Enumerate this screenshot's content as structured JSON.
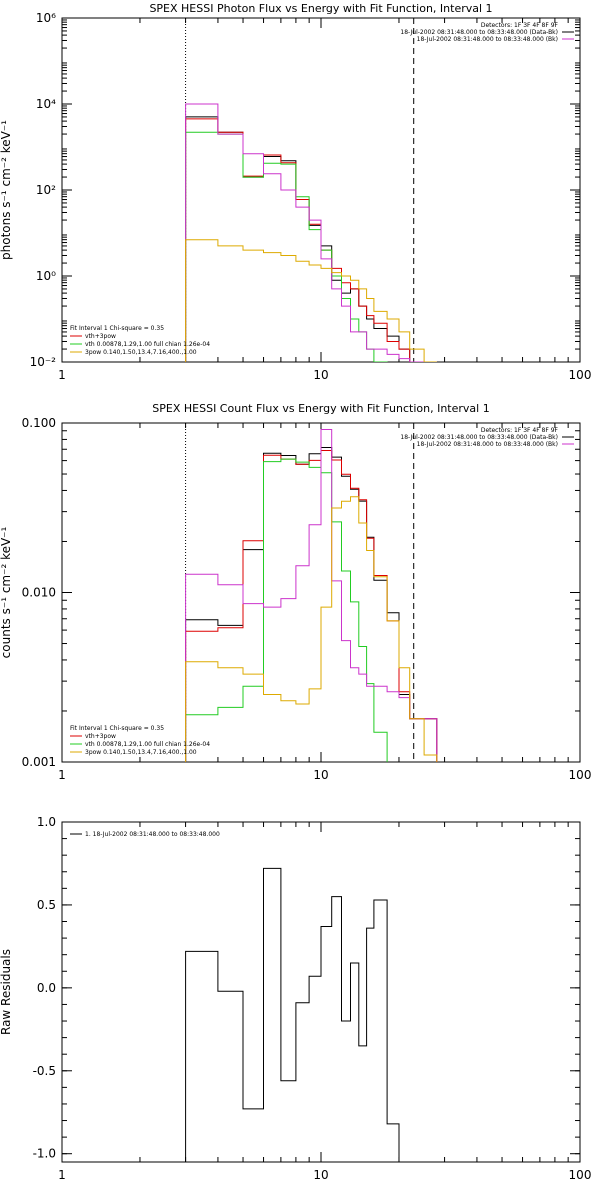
{
  "chart_data": [
    {
      "type": "line",
      "title": "SPEX HESSI Photon Flux vs Energy with Fit Function, Interval 1",
      "xlabel": "",
      "ylabel": "photons s⁻¹ cm⁻² keV⁻¹",
      "xscale": "log",
      "yscale": "log",
      "xlim": [
        1,
        100
      ],
      "ylim": [
        0.01,
        1000000
      ],
      "xticks": [
        1,
        10,
        100
      ],
      "xtick_labels": [
        "1",
        "10",
        "100"
      ],
      "yticks": [
        0.01,
        1,
        100,
        10000,
        1000000
      ],
      "ytick_labels": [
        "10⁻²",
        "10⁰",
        "10²",
        "10⁴",
        "10⁶"
      ],
      "vlines": [
        {
          "x": 3,
          "style": "dotted"
        },
        {
          "x": 22.8,
          "style": "dashed"
        }
      ],
      "header": [
        "Detectors: 1F 3F 4F 8F 9F",
        "18-Jul-2002 08:31:48.000 to 08:33:48.000 (Data-Bk)",
        "18-Jul-2002 08:31:48.000 to 08:33:48.000 (Bk)"
      ],
      "header_colors": [
        "#000000",
        "#000000",
        "#cc33cc"
      ],
      "legend": [
        {
          "text": "Fit Interval 1    Chi-square = 0.35",
          "color": ""
        },
        {
          "text": "vth+3pow",
          "color": "#dd0000"
        },
        {
          "text": "vth 0.00878,1.29,1.00   full chian 1.26e-04",
          "color": "#22cc22"
        },
        {
          "text": "3pow 0.140,1.50,13.4,7.16,400.,1.00",
          "color": "#ddaa00"
        }
      ],
      "bin_edges": [
        3.0,
        4.0,
        5.0,
        6.0,
        7.0,
        8.0,
        9.0,
        10.0,
        11.0,
        12.0,
        13.0,
        14.0,
        15.0,
        16.0,
        18.0,
        20.0,
        22.0,
        25.0,
        28.0
      ],
      "series": [
        {
          "color": "#000000",
          "values": [
            5000,
            2200,
            200,
            600,
            480,
            60,
            15,
            5,
            0.8,
            0.4,
            0.5,
            0.2,
            0.1,
            0.06,
            0.04,
            0.02,
            0.01,
            0.01
          ]
        },
        {
          "color": "#dd0000",
          "values": [
            4500,
            2200,
            210,
            650,
            430,
            60,
            16,
            4,
            1.5,
            0.7,
            0.5,
            0.2,
            0.12,
            0.08,
            0.03,
            0.02,
            0.01,
            0.01
          ]
        },
        {
          "color": "#22cc22",
          "values": [
            2200,
            2000,
            200,
            420,
            400,
            70,
            12,
            4,
            1,
            0.3,
            0.1,
            0.05,
            0.02,
            0.01,
            0.008,
            0.008,
            0.008,
            0.008
          ]
        },
        {
          "color": "#cc33cc",
          "values": [
            10000,
            2000,
            700,
            240,
            100,
            40,
            20,
            2.5,
            0.5,
            0.2,
            0.05,
            0.05,
            0.02,
            0.02,
            0.015,
            0.012,
            0.01,
            0.01
          ]
        },
        {
          "color": "#ddaa00",
          "values": [
            7,
            5,
            4,
            3.5,
            3,
            2.2,
            1.8,
            1.5,
            1.2,
            1,
            0.8,
            0.5,
            0.3,
            0.15,
            0.1,
            0.05,
            0.02,
            0.01
          ]
        }
      ]
    },
    {
      "type": "line",
      "title": "SPEX HESSI Count Flux vs Energy with Fit Function, Interval 1",
      "xlabel": "",
      "ylabel": "counts s⁻¹ cm⁻² keV⁻¹",
      "xscale": "log",
      "yscale": "log",
      "xlim": [
        1,
        100
      ],
      "ylim": [
        0.001,
        0.1
      ],
      "xticks": [
        1,
        10,
        100
      ],
      "xtick_labels": [
        "1",
        "10",
        "100"
      ],
      "yticks": [
        0.001,
        0.01,
        0.1
      ],
      "ytick_labels": [
        "0.001",
        "0.010",
        "0.100"
      ],
      "vlines": [
        {
          "x": 3,
          "style": "dotted"
        },
        {
          "x": 22.8,
          "style": "dashed"
        }
      ],
      "header": [
        "Detectors: 1F 3F 4F 8F 9F",
        "18-Jul-2002 08:31:48.000 to 08:33:48.000 (Data-Bk)",
        "18-Jul-2002 08:31:48.000 to 08:33:48.000 (Bk)"
      ],
      "header_colors": [
        "#000000",
        "#000000",
        "#cc33cc"
      ],
      "legend": [
        {
          "text": "Fit Interval 1    Chi-square = 0.35",
          "color": ""
        },
        {
          "text": "vth+3pow",
          "color": "#dd0000"
        },
        {
          "text": "vth 0.00878,1.29,1.00   full chian 1.26e-04",
          "color": "#22cc22"
        },
        {
          "text": "3pow 0.140,1.50,13.4,7.16,400.,1.00",
          "color": "#ddaa00"
        }
      ],
      "bin_edges": [
        3.0,
        4.0,
        5.0,
        6.0,
        7.0,
        8.0,
        9.0,
        10.0,
        11.0,
        12.0,
        13.0,
        14.0,
        15.0,
        16.0,
        18.0,
        20.0,
        22.0,
        25.0,
        28.0
      ],
      "series": [
        {
          "color": "#000000",
          "values": [
            0.0069,
            0.0064,
            0.0179,
            0.0663,
            0.0643,
            0.0571,
            0.0658,
            0.0717,
            0.0629,
            0.0485,
            0.0407,
            0.0346,
            0.0212,
            0.0118,
            0.0076,
            0.0025,
            0.0018,
            0.0018
          ]
        },
        {
          "color": "#dd0000",
          "values": [
            0.0059,
            0.0062,
            0.0202,
            0.0645,
            0.0612,
            0.0571,
            0.0602,
            0.0688,
            0.0605,
            0.0498,
            0.0412,
            0.0353,
            0.0209,
            0.0126,
            0.0068,
            0.0026,
            0.0018,
            0.0018
          ]
        },
        {
          "color": "#22cc22",
          "values": [
            0.0019,
            0.0021,
            0.0028,
            0.0592,
            0.0612,
            0.0588,
            0.0547,
            0.0509,
            0.0261,
            0.0134,
            0.0088,
            0.0048,
            0.0029,
            0.0015,
            0.0008,
            0.0008,
            0.0008,
            0.0008
          ]
        },
        {
          "color": "#cc33cc",
          "values": [
            0.0128,
            0.0111,
            0.0086,
            0.0082,
            0.0092,
            0.0144,
            0.0251,
            0.0915,
            0.0117,
            0.0052,
            0.0036,
            0.0033,
            0.0028,
            0.0028,
            0.0026,
            0.0024,
            0.0018,
            0.0018
          ]
        },
        {
          "color": "#ddaa00",
          "values": [
            0.0039,
            0.0036,
            0.0033,
            0.0025,
            0.0023,
            0.0022,
            0.0027,
            0.0082,
            0.0315,
            0.0345,
            0.0367,
            0.0257,
            0.0177,
            0.0124,
            0.0068,
            0.0036,
            0.0018,
            0.0011
          ]
        }
      ]
    },
    {
      "type": "line",
      "title": "",
      "xlabel": "",
      "ylabel": "Raw Residuals",
      "xscale": "log",
      "yscale": "linear",
      "xlim": [
        1,
        100
      ],
      "ylim": [
        -1.05,
        1.0
      ],
      "xticks": [
        1,
        10,
        100
      ],
      "xtick_labels": [
        "1",
        "10",
        "100"
      ],
      "yticks": [
        -1.0,
        -0.5,
        0.0,
        0.5,
        1.0
      ],
      "ytick_labels": [
        "-1.0",
        "-0.5",
        "0.0",
        "0.5",
        "1.0"
      ],
      "vlines": [],
      "header": [],
      "header_colors": [],
      "legend": [
        {
          "text": "1. 18-Jul-2002 08:31:48.000 to 08:33:48.000",
          "color": "#000000"
        }
      ],
      "bin_edges": [
        3.0,
        4.0,
        5.0,
        6.0,
        7.0,
        8.0,
        9.0,
        10.0,
        11.0,
        12.0,
        13.0,
        14.0,
        15.0,
        16.0,
        18.0,
        20.0,
        22.0
      ],
      "series": [
        {
          "color": "#000000",
          "values": [
            0.22,
            -0.02,
            -0.73,
            0.72,
            -0.56,
            -0.09,
            0.07,
            0.37,
            0.55,
            -0.2,
            0.15,
            -0.35,
            0.36,
            0.53,
            -0.82,
            -1.05
          ]
        }
      ]
    }
  ]
}
